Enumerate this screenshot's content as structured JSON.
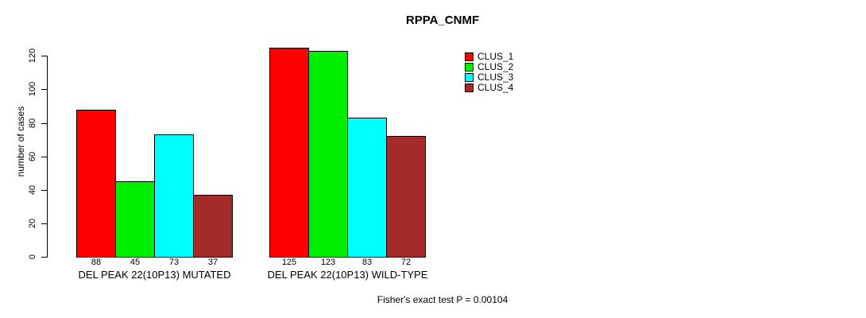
{
  "chart_data": {
    "type": "bar",
    "title": "RPPA_CNMF",
    "ylabel": "number of cases",
    "ylim": [
      0,
      120
    ],
    "yticks": [
      0,
      20,
      40,
      60,
      80,
      100,
      120
    ],
    "grid": false,
    "legend_position": "top-right",
    "categories": [
      "DEL PEAK 22(10P13) MUTATED",
      "DEL PEAK 22(10P13) WILD-TYPE"
    ],
    "series": [
      {
        "name": "CLUS_1",
        "color": "#FF0000",
        "values": [
          88,
          125
        ]
      },
      {
        "name": "CLUS_2",
        "color": "#00EE00",
        "values": [
          45,
          123
        ]
      },
      {
        "name": "CLUS_3",
        "color": "#00FFFF",
        "values": [
          73,
          83
        ]
      },
      {
        "name": "CLUS_4",
        "color": "#A52A2A",
        "values": [
          37,
          72
        ]
      }
    ],
    "annotation": "Fisher's exact test P = 0.00104"
  }
}
